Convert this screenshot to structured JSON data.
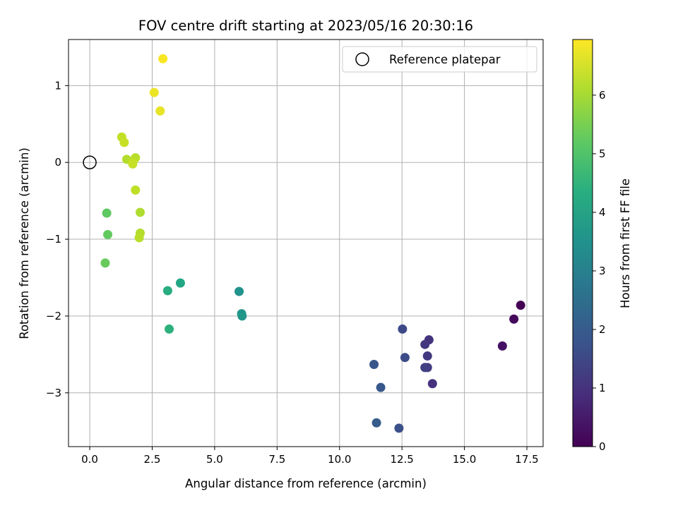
{
  "chart_data": {
    "type": "scatter",
    "title": "FOV centre drift starting at 2023/05/16 20:30:16",
    "xlabel": "Angular distance from reference (arcmin)",
    "ylabel": "Rotation from reference (arcmin)",
    "colorbar_label": "Hours from first FF file",
    "colormap": "viridis",
    "xlim": [
      -0.85,
      18.15
    ],
    "ylim": [
      -3.7,
      1.6
    ],
    "color_range": [
      0,
      6.95
    ],
    "x_ticks": [
      {
        "value": 0.0,
        "label": "0.0"
      },
      {
        "value": 2.5,
        "label": "2.5"
      },
      {
        "value": 5.0,
        "label": "5.0"
      },
      {
        "value": 7.5,
        "label": "7.5"
      },
      {
        "value": 10.0,
        "label": "10.0"
      },
      {
        "value": 12.5,
        "label": "12.5"
      },
      {
        "value": 15.0,
        "label": "15.0"
      },
      {
        "value": 17.5,
        "label": "17.5"
      }
    ],
    "y_ticks": [
      {
        "value": 1,
        "label": "1"
      },
      {
        "value": 0,
        "label": "0"
      },
      {
        "value": -1,
        "label": "−1"
      },
      {
        "value": -2,
        "label": "−2"
      },
      {
        "value": -3,
        "label": "−3"
      }
    ],
    "colorbar_ticks": [
      {
        "value": 0,
        "label": "0"
      },
      {
        "value": 1,
        "label": "1"
      },
      {
        "value": 2,
        "label": "2"
      },
      {
        "value": 3,
        "label": "3"
      },
      {
        "value": 4,
        "label": "4"
      },
      {
        "value": 5,
        "label": "5"
      },
      {
        "value": 6,
        "label": "6"
      }
    ],
    "grid": true,
    "legend": {
      "position": "top-right",
      "label": "Reference platepar"
    },
    "reference_point": {
      "x": 0,
      "y": 0
    },
    "points": [
      {
        "x": 17.25,
        "y": -1.86,
        "c": 0.0
      },
      {
        "x": 16.98,
        "y": -2.04,
        "c": 0.15
      },
      {
        "x": 16.52,
        "y": -2.39,
        "c": 0.3
      },
      {
        "x": 13.72,
        "y": -2.88,
        "c": 1.0
      },
      {
        "x": 13.58,
        "y": -2.31,
        "c": 1.05
      },
      {
        "x": 13.42,
        "y": -2.37,
        "c": 1.1
      },
      {
        "x": 13.52,
        "y": -2.52,
        "c": 1.15
      },
      {
        "x": 13.52,
        "y": -2.67,
        "c": 1.2
      },
      {
        "x": 13.42,
        "y": -2.67,
        "c": 1.25
      },
      {
        "x": 12.52,
        "y": -2.17,
        "c": 1.55
      },
      {
        "x": 12.62,
        "y": -2.54,
        "c": 1.6
      },
      {
        "x": 11.38,
        "y": -2.63,
        "c": 1.85
      },
      {
        "x": 11.65,
        "y": -2.93,
        "c": 1.9
      },
      {
        "x": 12.38,
        "y": -3.46,
        "c": 1.7
      },
      {
        "x": 11.48,
        "y": -3.39,
        "c": 2.0
      },
      {
        "x": 5.98,
        "y": -1.68,
        "c": 3.5
      },
      {
        "x": 6.08,
        "y": -1.97,
        "c": 3.6
      },
      {
        "x": 6.1,
        "y": -2.0,
        "c": 3.65
      },
      {
        "x": 3.63,
        "y": -1.57,
        "c": 4.15
      },
      {
        "x": 3.12,
        "y": -1.67,
        "c": 4.3
      },
      {
        "x": 3.18,
        "y": -2.17,
        "c": 4.4
      },
      {
        "x": 0.68,
        "y": -0.66,
        "c": 5.2
      },
      {
        "x": 0.72,
        "y": -0.94,
        "c": 5.25
      },
      {
        "x": 0.62,
        "y": -1.31,
        "c": 5.3
      },
      {
        "x": 2.02,
        "y": -0.65,
        "c": 6.1
      },
      {
        "x": 2.02,
        "y": -0.92,
        "c": 6.15
      },
      {
        "x": 1.98,
        "y": -0.98,
        "c": 6.2
      },
      {
        "x": 1.83,
        "y": -0.36,
        "c": 6.25
      },
      {
        "x": 1.48,
        "y": 0.04,
        "c": 6.15
      },
      {
        "x": 1.83,
        "y": 0.06,
        "c": 6.2
      },
      {
        "x": 1.72,
        "y": 0.0,
        "c": 6.3
      },
      {
        "x": 1.72,
        "y": -0.02,
        "c": 6.35
      },
      {
        "x": 1.28,
        "y": 0.33,
        "c": 6.3
      },
      {
        "x": 1.38,
        "y": 0.26,
        "c": 6.35
      },
      {
        "x": 2.82,
        "y": 0.67,
        "c": 6.7
      },
      {
        "x": 2.58,
        "y": 0.91,
        "c": 6.75
      },
      {
        "x": 2.93,
        "y": 1.35,
        "c": 6.9
      }
    ]
  }
}
